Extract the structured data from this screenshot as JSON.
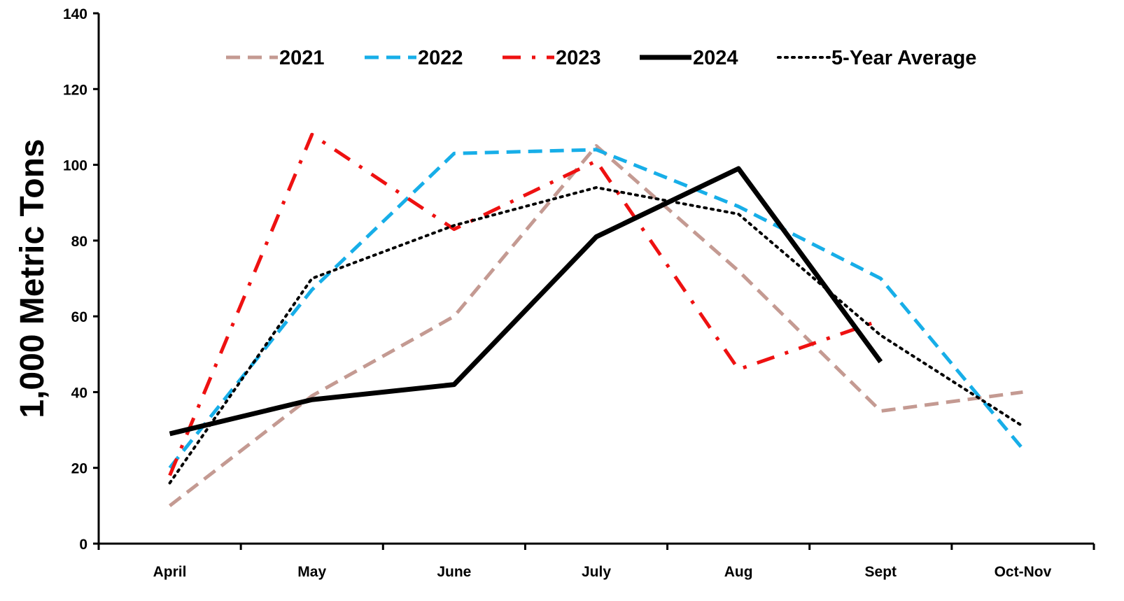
{
  "chart_data": {
    "type": "line",
    "title": "",
    "xlabel": "",
    "ylabel": "1,000 Metric Tons",
    "ylim": [
      0,
      140
    ],
    "yticks": [
      0,
      20,
      40,
      60,
      80,
      100,
      120,
      140
    ],
    "grid": false,
    "legend_position": "top",
    "categories": [
      "April",
      "May",
      "June",
      "July",
      "Aug",
      "Sept",
      "Oct-Nov"
    ],
    "series": [
      {
        "name": "2021",
        "color": "#c49a92",
        "style": "dashed",
        "values": [
          10,
          39,
          60,
          105,
          72,
          35,
          40
        ]
      },
      {
        "name": "2022",
        "color": "#17aee8",
        "style": "dashed",
        "values": [
          20,
          67,
          103,
          104,
          89,
          70,
          25
        ]
      },
      {
        "name": "2023",
        "color": "#ee1111",
        "style": "dash-dot",
        "values": [
          18,
          108,
          83,
          101,
          46,
          59,
          null
        ]
      },
      {
        "name": "2024",
        "color": "#000000",
        "style": "solid-thick",
        "values": [
          29,
          38,
          42,
          81,
          99,
          48,
          null
        ]
      },
      {
        "name": "5-Year Average",
        "color": "#000000",
        "style": "dotted",
        "values": [
          16,
          70,
          84,
          94,
          87,
          55,
          31
        ]
      }
    ]
  }
}
